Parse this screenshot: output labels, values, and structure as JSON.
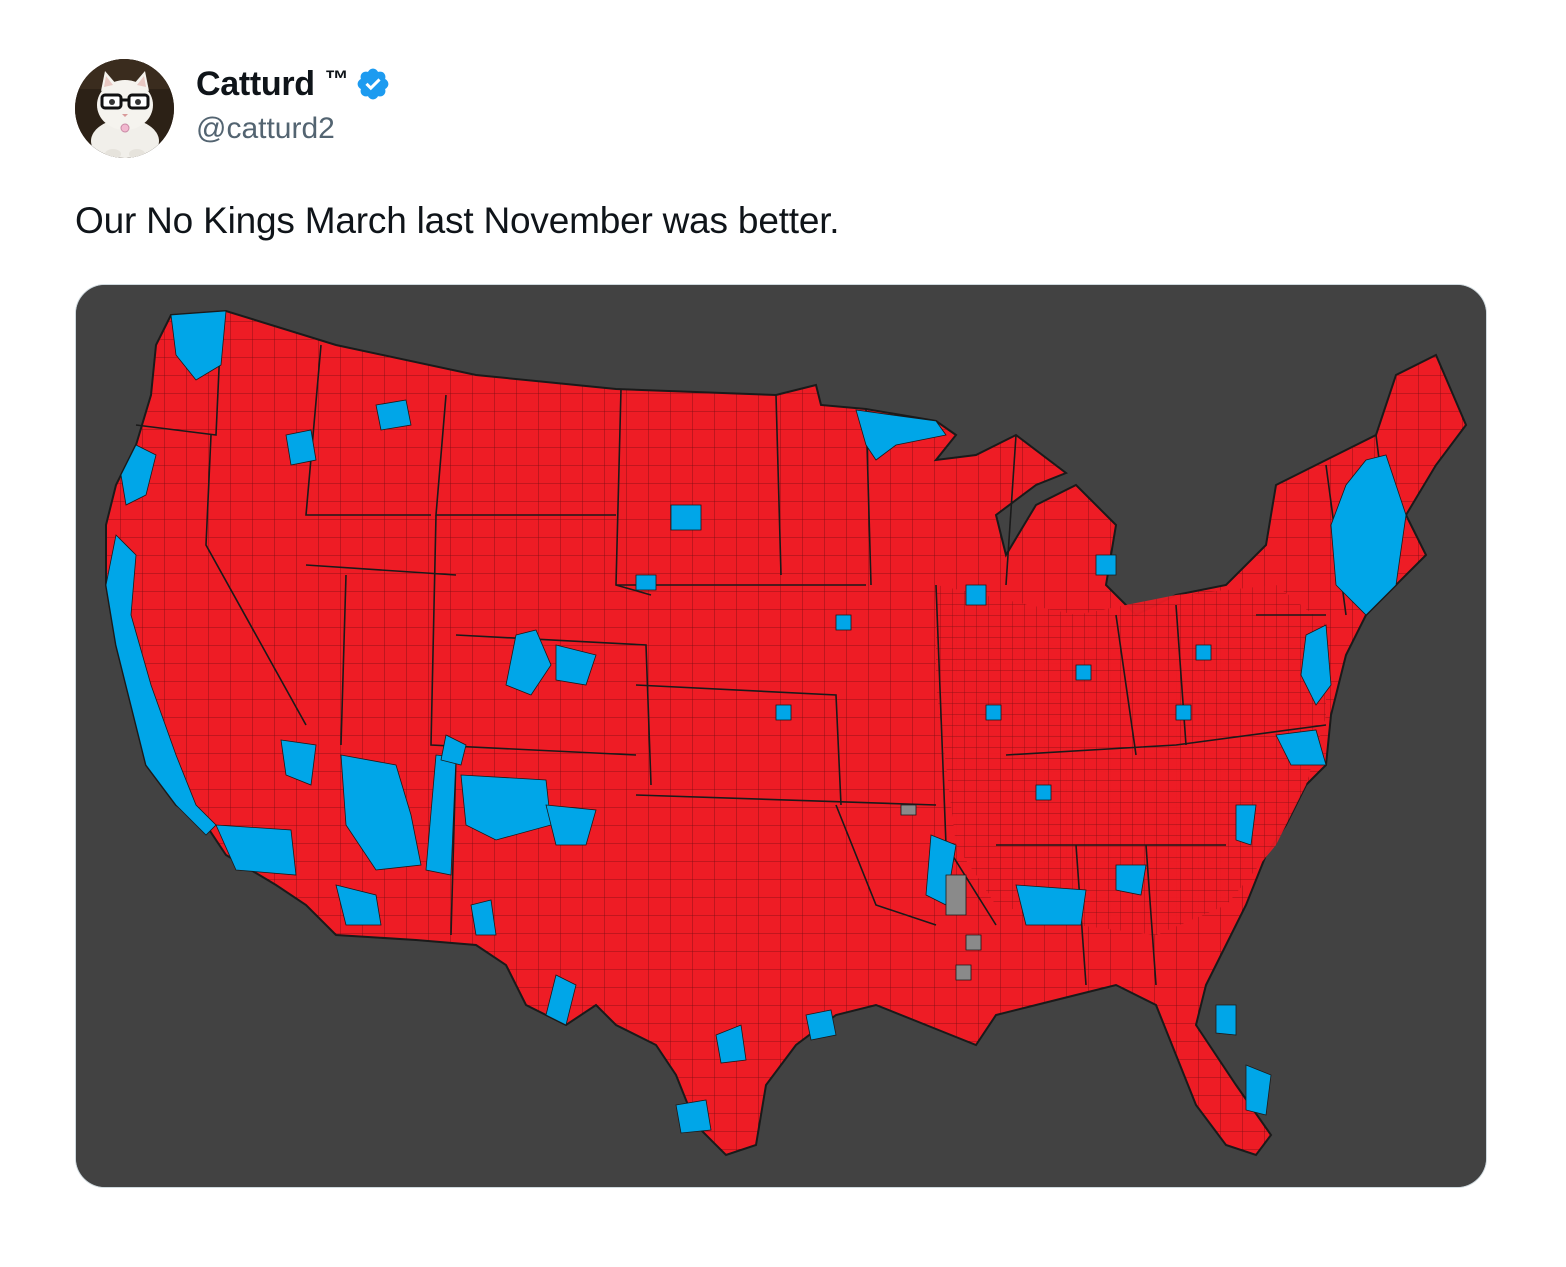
{
  "author": {
    "display_name": "Catturd",
    "trademark": "™",
    "handle": "@catturd2",
    "verified": true,
    "avatar_icon": "cat-with-glasses-avatar"
  },
  "tweet": {
    "text": "Our No Kings March last November was better."
  },
  "media": {
    "type": "map",
    "description_icon": "us-county-election-map-icon",
    "colors": {
      "background": "#424242",
      "republican": "#ee1c25",
      "democrat": "#00a6e8",
      "tie": "#8a8a8a",
      "border": "#1a1a1a"
    }
  },
  "colors": {
    "verified_badge": "#1d9bf0",
    "handle": "#536471",
    "text": "#0f1419"
  }
}
